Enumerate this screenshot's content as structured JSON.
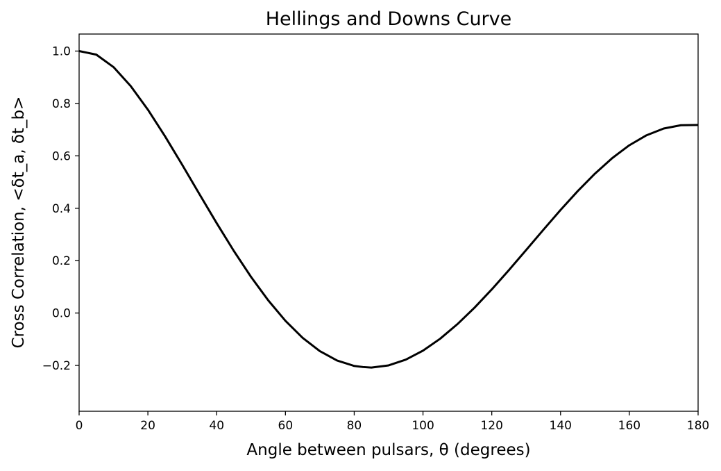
{
  "chart_data": {
    "type": "line",
    "title": "Hellings and Downs Curve",
    "xlabel": "Angle between pulsars, θ (degrees)",
    "ylabel": "Cross Correlation, <δt_a, δt_b>",
    "xlim": [
      0,
      180
    ],
    "ylim": [
      -0.375,
      1.065
    ],
    "xticks": [
      "0",
      "20",
      "40",
      "60",
      "80",
      "100",
      "120",
      "140",
      "160",
      "180"
    ],
    "yticks": [
      "−0.2",
      "0.0",
      "0.2",
      "0.4",
      "0.6",
      "0.8",
      "1.0"
    ],
    "grid": false,
    "series": [
      {
        "color": "#000000",
        "x": [
          0,
          5,
          10,
          15,
          20,
          25,
          30,
          35,
          40,
          45,
          50,
          55,
          60,
          65,
          70,
          75,
          80,
          82.5,
          85,
          90,
          95,
          100,
          105,
          110,
          115,
          120,
          125,
          130,
          135,
          140,
          145,
          150,
          155,
          160,
          165,
          170,
          175,
          180
        ],
        "y": [
          1.0,
          0.9865,
          0.9389,
          0.8665,
          0.7764,
          0.6744,
          0.5654,
          0.4538,
          0.3432,
          0.2369,
          0.1378,
          0.0483,
          -0.0297,
          -0.0946,
          -0.1453,
          -0.1812,
          -0.2021,
          -0.2061,
          -0.2082,
          -0.1999,
          -0.178,
          -0.1436,
          -0.098,
          -0.0426,
          0.0207,
          0.0902,
          0.1641,
          0.2406,
          0.3177,
          0.3934,
          0.4655,
          0.5321,
          0.591,
          0.6404,
          0.6786,
          0.7044,
          0.717,
          0.718
        ]
      }
    ]
  }
}
